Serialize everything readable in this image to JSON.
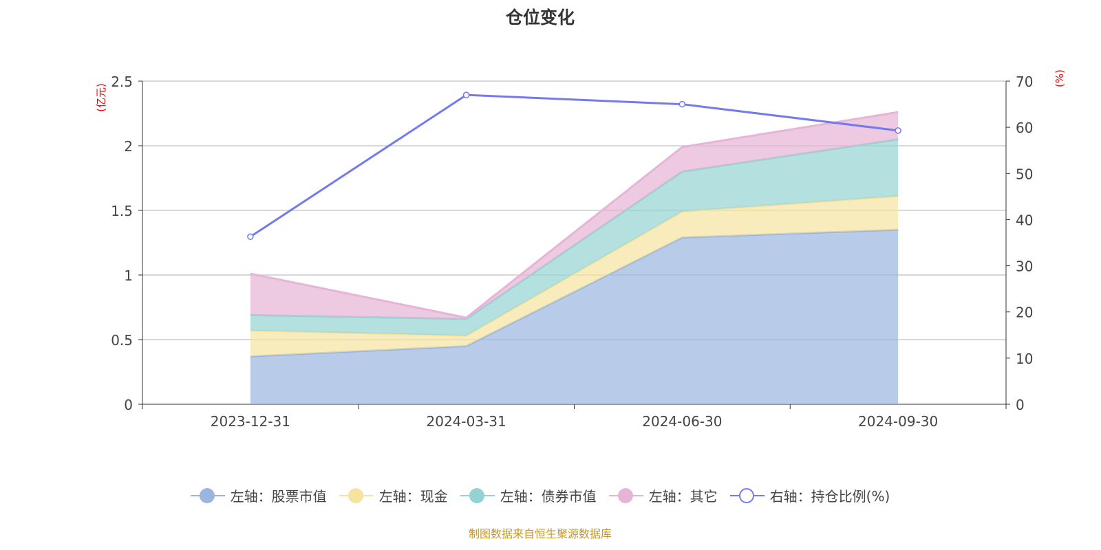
{
  "chart_data": {
    "type": "area",
    "title": "仓位变化",
    "categories": [
      "2023-12-31",
      "2024-03-31",
      "2024-06-30",
      "2024-09-30"
    ],
    "left_axis": {
      "label": "(亿元)",
      "range": [
        0,
        2.5
      ],
      "ticks": [
        "0",
        "0.5",
        "1",
        "1.5",
        "2",
        "2.5"
      ]
    },
    "right_axis": {
      "label": "(%)",
      "range": [
        0,
        70
      ],
      "ticks": [
        "0",
        "10",
        "20",
        "30",
        "40",
        "50",
        "60",
        "70"
      ]
    },
    "stacked": true,
    "grid": true,
    "legend_position": "bottom",
    "series": [
      {
        "name": "左轴：股票市值",
        "axis": "left",
        "type": "area",
        "color": "#9ab6e0",
        "values": [
          0.37,
          0.45,
          1.29,
          1.35
        ]
      },
      {
        "name": "左轴：现金",
        "axis": "left",
        "type": "area",
        "color": "#f5e3a0",
        "values": [
          0.2,
          0.08,
          0.2,
          0.26
        ]
      },
      {
        "name": "左轴：债券市值",
        "axis": "left",
        "type": "area",
        "color": "#94d3d3",
        "values": [
          0.12,
          0.13,
          0.31,
          0.44
        ]
      },
      {
        "name": "左轴：其它",
        "axis": "left",
        "type": "area",
        "color": "#e6b4d6",
        "values": [
          0.32,
          0.01,
          0.19,
          0.21
        ]
      },
      {
        "name": "右轴：持仓比例(%)",
        "axis": "right",
        "type": "line",
        "color": "#7579f0",
        "values": [
          36.3,
          67.0,
          65.0,
          59.3
        ]
      }
    ]
  },
  "source": "制图数据来自恒生聚源数据库"
}
